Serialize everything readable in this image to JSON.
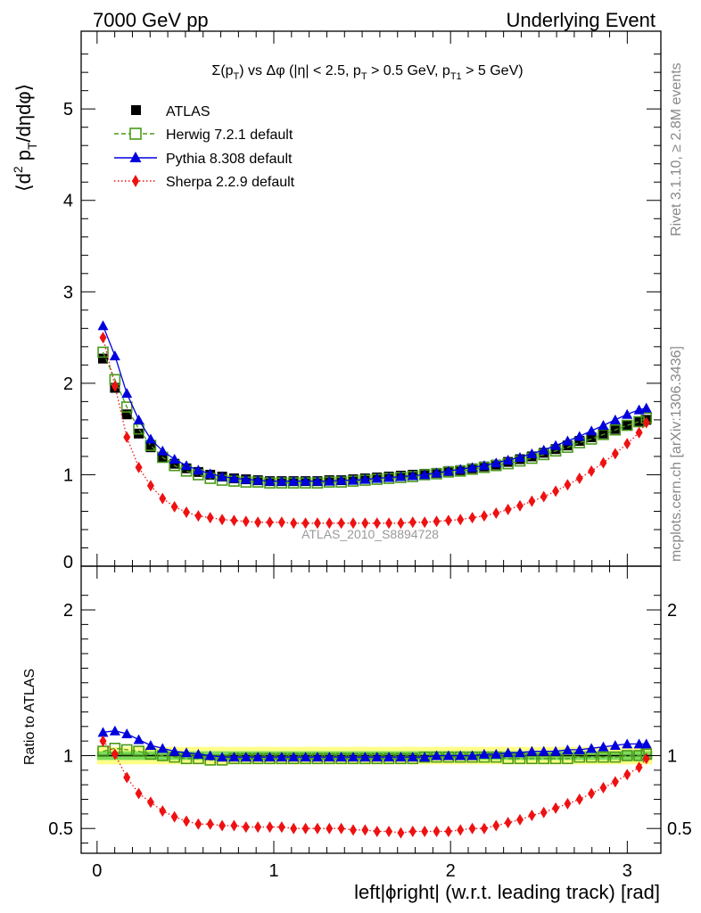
{
  "header": {
    "left": "7000 GeV pp",
    "right": "Underlying Event"
  },
  "side_labels": {
    "rivet": "Rivet 3.1.10, ≥ 2.8M events",
    "mcplots": "mcplots.cern.ch [arXiv:1306.3436]"
  },
  "colors": {
    "atlas": "#000000",
    "herwig": "#4a9a1a",
    "pythia": "#0000dd",
    "sherpa": "#ee1111",
    "band_inner": "#7ddc5a",
    "band_outer": "#ffff88"
  },
  "chart_data": [
    {
      "type": "scatter",
      "title": "Σ(p_T) vs Δφ (|η| < 2.5, p_T > 0.5 GeV, p_T1 > 5 GeV)",
      "title_parts": {
        "t1": "Σ(p",
        "t2": "T",
        "t3": ") vs Δφ (|η| < 2.5, p",
        "t4": "T",
        "t5": " > 0.5 GeV, p",
        "t6": "T1",
        "t7": " > 5 GeV)"
      },
      "ylabel": "⟨d² p_T/dηdφ⟩",
      "ylabel_parts": {
        "a": "⟨d",
        "b": "2",
        "c": " p",
        "d": "T",
        "e": "/dηdφ⟩"
      },
      "ylim": [
        0,
        5.85
      ],
      "yticks": [
        0,
        1,
        2,
        3,
        4,
        5
      ],
      "watermark": "ATLAS_2010_S8894728",
      "legend_position": "top-left",
      "x": [
        0.0337,
        0.1011,
        0.1685,
        0.2359,
        0.3033,
        0.3707,
        0.4381,
        0.5055,
        0.5729,
        0.6403,
        0.7077,
        0.7751,
        0.8425,
        0.9099,
        0.9773,
        1.0447,
        1.1121,
        1.1795,
        1.2469,
        1.3143,
        1.3817,
        1.4491,
        1.5165,
        1.5839,
        1.6513,
        1.7187,
        1.7861,
        1.8535,
        1.9209,
        1.9883,
        2.0557,
        2.1231,
        2.1905,
        2.2579,
        2.3253,
        2.3927,
        2.4601,
        2.5275,
        2.5949,
        2.6623,
        2.7297,
        2.7971,
        2.8645,
        2.9319,
        2.9993,
        3.0667,
        3.1079
      ],
      "series": [
        {
          "name": "ATLAS",
          "key": "atlas",
          "marker": "square-filled",
          "values": [
            2.27,
            1.95,
            1.66,
            1.45,
            1.3,
            1.19,
            1.12,
            1.07,
            1.03,
            1.0,
            0.98,
            0.96,
            0.95,
            0.94,
            0.93,
            0.93,
            0.93,
            0.93,
            0.93,
            0.94,
            0.94,
            0.95,
            0.96,
            0.97,
            0.98,
            0.99,
            1.0,
            1.01,
            1.02,
            1.04,
            1.05,
            1.07,
            1.09,
            1.11,
            1.14,
            1.17,
            1.2,
            1.24,
            1.28,
            1.32,
            1.37,
            1.41,
            1.45,
            1.5,
            1.54,
            1.58,
            1.6
          ]
        },
        {
          "name": "Herwig 7.2.1 default",
          "key": "herwig",
          "marker": "square-open",
          "values": [
            2.34,
            2.04,
            1.74,
            1.5,
            1.32,
            1.19,
            1.1,
            1.04,
            1.0,
            0.96,
            0.94,
            0.93,
            0.92,
            0.92,
            0.91,
            0.91,
            0.91,
            0.91,
            0.91,
            0.92,
            0.92,
            0.93,
            0.94,
            0.95,
            0.96,
            0.97,
            0.98,
            1.0,
            1.01,
            1.03,
            1.04,
            1.06,
            1.08,
            1.1,
            1.12,
            1.15,
            1.18,
            1.22,
            1.26,
            1.3,
            1.35,
            1.39,
            1.44,
            1.49,
            1.54,
            1.58,
            1.62
          ]
        },
        {
          "name": "Pythia 8.308 default",
          "key": "pythia",
          "marker": "triangle-filled",
          "values": [
            2.63,
            2.3,
            1.89,
            1.6,
            1.39,
            1.26,
            1.17,
            1.1,
            1.05,
            1.01,
            0.98,
            0.96,
            0.95,
            0.94,
            0.93,
            0.93,
            0.93,
            0.93,
            0.93,
            0.93,
            0.94,
            0.94,
            0.95,
            0.96,
            0.97,
            0.98,
            0.99,
            1.0,
            1.02,
            1.04,
            1.06,
            1.08,
            1.1,
            1.13,
            1.16,
            1.19,
            1.23,
            1.27,
            1.32,
            1.37,
            1.42,
            1.48,
            1.54,
            1.6,
            1.66,
            1.71,
            1.73
          ]
        },
        {
          "name": "Sherpa 2.2.9 default",
          "key": "sherpa",
          "marker": "diamond-filled",
          "values": [
            2.5,
            1.97,
            1.41,
            1.08,
            0.88,
            0.74,
            0.65,
            0.59,
            0.55,
            0.53,
            0.51,
            0.5,
            0.49,
            0.48,
            0.48,
            0.48,
            0.47,
            0.47,
            0.47,
            0.47,
            0.47,
            0.47,
            0.47,
            0.47,
            0.47,
            0.47,
            0.48,
            0.48,
            0.49,
            0.5,
            0.51,
            0.53,
            0.55,
            0.58,
            0.62,
            0.66,
            0.71,
            0.76,
            0.82,
            0.89,
            0.96,
            1.04,
            1.13,
            1.23,
            1.34,
            1.46,
            1.57
          ]
        }
      ]
    },
    {
      "type": "scatter",
      "ylabel": "Ratio to ATLAS",
      "xlabel": "left|ϕright| (w.r.t. leading track) [rad]",
      "xlabel_display": "left|ϕright| (w.r.t. leading track) [rad]",
      "xlim": [
        -0.09,
        3.19
      ],
      "xticks": [
        0,
        1,
        2,
        3
      ],
      "ylim": [
        0.33,
        2.3
      ],
      "yticks": [
        0.5,
        1,
        2
      ],
      "ytick_labels": [
        "0.5",
        "1",
        "2"
      ],
      "band": {
        "inner": [
          0.97,
          1.03
        ],
        "outer": [
          0.94,
          1.06
        ]
      },
      "series": [
        {
          "name": "Herwig 7.2.1 default",
          "key": "herwig",
          "marker": "square-open",
          "values": [
            1.03,
            1.05,
            1.04,
            1.03,
            1.01,
            1.0,
            0.99,
            0.98,
            0.98,
            0.97,
            0.97,
            0.98,
            0.98,
            0.98,
            0.98,
            0.98,
            0.98,
            0.98,
            0.98,
            0.98,
            0.98,
            0.98,
            0.98,
            0.98,
            0.98,
            0.98,
            0.98,
            0.99,
            0.99,
            0.99,
            0.99,
            0.99,
            0.99,
            0.99,
            0.98,
            0.98,
            0.98,
            0.98,
            0.98,
            0.98,
            0.99,
            0.99,
            0.99,
            0.99,
            1.0,
            1.0,
            1.01
          ]
        },
        {
          "name": "Pythia 8.308 default",
          "key": "pythia",
          "marker": "triangle-filled",
          "values": [
            1.16,
            1.17,
            1.15,
            1.11,
            1.07,
            1.05,
            1.03,
            1.02,
            1.01,
            1.0,
            0.99,
            0.99,
            0.99,
            0.99,
            0.99,
            0.99,
            0.99,
            0.99,
            0.99,
            0.99,
            0.99,
            0.99,
            0.99,
            0.99,
            0.99,
            0.99,
            0.99,
            0.99,
            1.0,
            1.0,
            1.0,
            1.0,
            1.01,
            1.01,
            1.02,
            1.02,
            1.03,
            1.03,
            1.03,
            1.04,
            1.04,
            1.05,
            1.06,
            1.07,
            1.08,
            1.08,
            1.08
          ]
        },
        {
          "name": "Sherpa 2.2.9 default",
          "key": "sherpa",
          "marker": "diamond-filled",
          "values": [
            1.1,
            1.01,
            0.85,
            0.74,
            0.68,
            0.62,
            0.58,
            0.55,
            0.53,
            0.53,
            0.52,
            0.52,
            0.51,
            0.51,
            0.51,
            0.51,
            0.5,
            0.5,
            0.5,
            0.5,
            0.5,
            0.49,
            0.49,
            0.48,
            0.48,
            0.47,
            0.48,
            0.48,
            0.48,
            0.48,
            0.49,
            0.5,
            0.5,
            0.52,
            0.54,
            0.56,
            0.59,
            0.61,
            0.64,
            0.67,
            0.7,
            0.74,
            0.78,
            0.82,
            0.87,
            0.92,
            0.98
          ]
        }
      ]
    }
  ]
}
